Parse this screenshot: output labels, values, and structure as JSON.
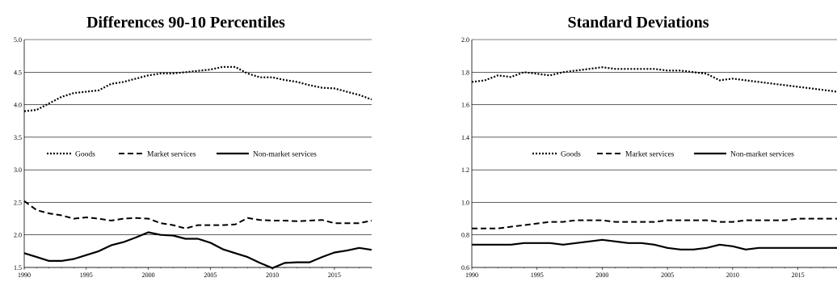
{
  "chart_data": [
    {
      "type": "line",
      "title": "Differences 90-10 Percentiles",
      "xlabel": "",
      "ylabel": "",
      "xlim": [
        1990,
        2018
      ],
      "ylim": [
        1.5,
        5.0
      ],
      "grid": "horizontal",
      "legend_position": "center",
      "y_ticks": [
        "1.5",
        "2.0",
        "2.5",
        "3.0",
        "3.5",
        "4.0",
        "4.5",
        "5.0"
      ],
      "x_ticks": [
        "1990",
        "1995",
        "2000",
        "2005",
        "2010",
        "2015"
      ],
      "x": [
        1990,
        1991,
        1992,
        1993,
        1994,
        1995,
        1996,
        1997,
        1998,
        1999,
        2000,
        2001,
        2002,
        2003,
        2004,
        2005,
        2006,
        2007,
        2008,
        2009,
        2010,
        2011,
        2012,
        2013,
        2014,
        2015,
        2016,
        2017,
        2018
      ],
      "series": [
        {
          "name": "Goods",
          "style": "dotted",
          "values": [
            3.9,
            3.92,
            4.02,
            4.12,
            4.18,
            4.2,
            4.22,
            4.32,
            4.35,
            4.4,
            4.45,
            4.48,
            4.48,
            4.5,
            4.52,
            4.54,
            4.58,
            4.58,
            4.48,
            4.42,
            4.42,
            4.38,
            4.35,
            4.3,
            4.26,
            4.25,
            4.2,
            4.15,
            4.08
          ]
        },
        {
          "name": "Market services",
          "style": "dashed",
          "values": [
            2.52,
            2.38,
            2.33,
            2.3,
            2.25,
            2.27,
            2.25,
            2.22,
            2.25,
            2.26,
            2.25,
            2.18,
            2.15,
            2.1,
            2.15,
            2.15,
            2.15,
            2.16,
            2.26,
            2.23,
            2.22,
            2.22,
            2.21,
            2.22,
            2.23,
            2.18,
            2.18,
            2.18,
            2.22
          ]
        },
        {
          "name": "Non-market services",
          "style": "solid",
          "values": [
            1.72,
            1.66,
            1.6,
            1.6,
            1.63,
            1.69,
            1.75,
            1.84,
            1.89,
            1.96,
            2.04,
            2.0,
            1.99,
            1.94,
            1.94,
            1.88,
            1.78,
            1.72,
            1.66,
            1.57,
            1.49,
            1.57,
            1.58,
            1.58,
            1.66,
            1.73,
            1.76,
            1.8,
            1.77
          ]
        }
      ]
    },
    {
      "type": "line",
      "title": "Standard Deviations",
      "xlabel": "",
      "ylabel": "",
      "xlim": [
        1990,
        2018
      ],
      "ylim": [
        0.6,
        2.0
      ],
      "grid": "horizontal",
      "legend_position": "center",
      "y_ticks": [
        "0.6",
        "0.8",
        "1.0",
        "1.2",
        "1.4",
        "1.6",
        "1.8",
        "2.0"
      ],
      "x_ticks": [
        "1990",
        "1995",
        "2000",
        "2005",
        "2010",
        "2015"
      ],
      "x": [
        1990,
        1991,
        1992,
        1993,
        1994,
        1995,
        1996,
        1997,
        1998,
        1999,
        2000,
        2001,
        2002,
        2003,
        2004,
        2005,
        2006,
        2007,
        2008,
        2009,
        2010,
        2011,
        2012,
        2013,
        2014,
        2015,
        2016,
        2017,
        2018
      ],
      "series": [
        {
          "name": "Goods",
          "style": "dotted",
          "values": [
            1.74,
            1.75,
            1.78,
            1.77,
            1.8,
            1.79,
            1.78,
            1.8,
            1.81,
            1.82,
            1.83,
            1.82,
            1.82,
            1.82,
            1.82,
            1.81,
            1.81,
            1.8,
            1.79,
            1.75,
            1.76,
            1.75,
            1.74,
            1.73,
            1.72,
            1.71,
            1.7,
            1.69,
            1.68
          ]
        },
        {
          "name": "Market services",
          "style": "dashed",
          "values": [
            0.84,
            0.84,
            0.84,
            0.85,
            0.86,
            0.87,
            0.88,
            0.88,
            0.89,
            0.89,
            0.89,
            0.88,
            0.88,
            0.88,
            0.88,
            0.89,
            0.89,
            0.89,
            0.89,
            0.88,
            0.88,
            0.89,
            0.89,
            0.89,
            0.89,
            0.9,
            0.9,
            0.9,
            0.9
          ]
        },
        {
          "name": "Non-market services",
          "style": "solid",
          "values": [
            0.74,
            0.74,
            0.74,
            0.74,
            0.75,
            0.75,
            0.75,
            0.74,
            0.75,
            0.76,
            0.77,
            0.76,
            0.75,
            0.75,
            0.74,
            0.72,
            0.71,
            0.71,
            0.72,
            0.74,
            0.73,
            0.71,
            0.72,
            0.72,
            0.72,
            0.72,
            0.72,
            0.72,
            0.72
          ]
        }
      ]
    }
  ]
}
